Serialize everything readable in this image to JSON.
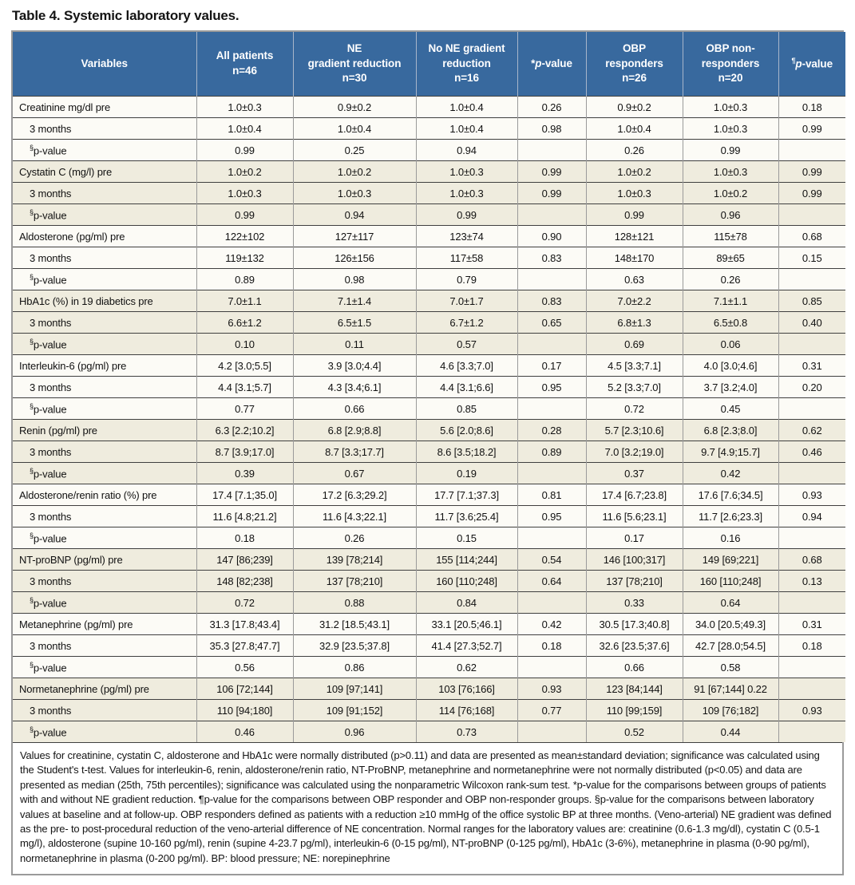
{
  "title": "Table 4. Systemic laboratory values.",
  "colors": {
    "header_bg": "#38699E",
    "header_text": "#FFFFFF",
    "band_beige": "#EFECDE",
    "band_white": "#FCFBF6",
    "grid_horizontal": "#3F3F3F",
    "grid_vertical": "#9A9A9A",
    "outer_border": "#9A9A9A"
  },
  "columns": [
    {
      "text": "Variables"
    },
    {
      "text": "All patients\nn=46"
    },
    {
      "text": "NE\ngradient reduction\nn=30"
    },
    {
      "text": "No NE gradient\nreduction\nn=16"
    },
    {
      "pre": "*",
      "italic": "p",
      "text": "-value"
    },
    {
      "text": "OBP\nresponders\nn=26"
    },
    {
      "text": "OBP non-\nresponders\nn=20"
    },
    {
      "sup": "¶",
      "italic": "p",
      "text": "-value"
    }
  ],
  "rows": [
    {
      "label": {
        "text": "Creatinine mg/dl pre"
      },
      "cells": [
        "1.0±0.3",
        "0.9±0.2",
        "1.0±0.4",
        "0.26",
        "0.9±0.2",
        "1.0±0.3",
        "0.18"
      ]
    },
    {
      "label": {
        "text": "3 months",
        "indent": true
      },
      "cells": [
        "1.0±0.4",
        "1.0±0.4",
        "1.0±0.4",
        "0.98",
        "1.0±0.4",
        "1.0±0.3",
        "0.99"
      ]
    },
    {
      "label": {
        "sup": "§",
        "text": "p-value",
        "indent": true
      },
      "cells": [
        "0.99",
        "0.25",
        "0.94",
        "",
        "0.26",
        "0.99",
        ""
      ]
    },
    {
      "label": {
        "text": "Cystatin C (mg/l) pre"
      },
      "cells": [
        "1.0±0.2",
        "1.0±0.2",
        "1.0±0.3",
        "0.99",
        "1.0±0.2",
        "1.0±0.3",
        "0.99"
      ]
    },
    {
      "label": {
        "text": "3 months",
        "indent": true
      },
      "cells": [
        "1.0±0.3",
        "1.0±0.3",
        "1.0±0.3",
        "0.99",
        "1.0±0.3",
        "1.0±0.2",
        "0.99"
      ]
    },
    {
      "label": {
        "sup": "§",
        "text": "p-value",
        "indent": true
      },
      "cells": [
        "0.99",
        "0.94",
        "0.99",
        "",
        "0.99",
        "0.96",
        ""
      ]
    },
    {
      "label": {
        "text": "Aldosterone (pg/ml) pre"
      },
      "cells": [
        "122±102",
        "127±117",
        "123±74",
        "0.90",
        "128±121",
        "115±78",
        "0.68"
      ]
    },
    {
      "label": {
        "text": "3 months",
        "indent": true
      },
      "cells": [
        "119±132",
        "126±156",
        "117±58",
        "0.83",
        "148±170",
        "89±65",
        "0.15"
      ]
    },
    {
      "label": {
        "sup": "§",
        "text": "p-value",
        "indent": true
      },
      "cells": [
        "0.89",
        "0.98",
        "0.79",
        "",
        "0.63",
        "0.26",
        ""
      ]
    },
    {
      "label": {
        "text": "HbA1c (%) in 19 diabetics pre"
      },
      "cells": [
        "7.0±1.1",
        "7.1±1.4",
        "7.0±1.7",
        "0.83",
        "7.0±2.2",
        "7.1±1.1",
        "0.85"
      ]
    },
    {
      "label": {
        "text": "3 months",
        "indent": true
      },
      "cells": [
        "6.6±1.2",
        "6.5±1.5",
        "6.7±1.2",
        "0.65",
        "6.8±1.3",
        "6.5±0.8",
        "0.40"
      ]
    },
    {
      "label": {
        "sup": "§",
        "text": "p-value",
        "indent": true
      },
      "cells": [
        "0.10",
        "0.11",
        "0.57",
        "",
        "0.69",
        "0.06",
        ""
      ]
    },
    {
      "label": {
        "text": "Interleukin-6 (pg/ml) pre"
      },
      "cells": [
        "4.2 [3.0;5.5]",
        "3.9 [3.0;4.4]",
        "4.6 [3.3;7.0]",
        "0.17",
        "4.5 [3.3;7.1]",
        "4.0 [3.0;4.6]",
        "0.31"
      ]
    },
    {
      "label": {
        "text": "3 months",
        "indent": true
      },
      "cells": [
        "4.4 [3.1;5.7]",
        "4.3 [3.4;6.1]",
        "4.4 [3.1;6.6]",
        "0.95",
        "5.2 [3.3;7.0]",
        "3.7 [3.2;4.0]",
        "0.20"
      ]
    },
    {
      "label": {
        "sup": "§",
        "text": "p-value",
        "indent": true
      },
      "cells": [
        "0.77",
        "0.66",
        "0.85",
        "",
        "0.72",
        "0.45",
        ""
      ]
    },
    {
      "label": {
        "text": "Renin (pg/ml) pre"
      },
      "cells": [
        "6.3 [2.2;10.2]",
        "6.8 [2.9;8.8]",
        "5.6 [2.0;8.6]",
        "0.28",
        "5.7 [2.3;10.6]",
        "6.8 [2.3;8.0]",
        "0.62"
      ]
    },
    {
      "label": {
        "text": "3 months",
        "indent": true
      },
      "cells": [
        "8.7 [3.9;17.0]",
        "8.7 [3.3;17.7]",
        "8.6 [3.5;18.2]",
        "0.89",
        "7.0 [3.2;19.0]",
        "9.7 [4.9;15.7]",
        "0.46"
      ]
    },
    {
      "label": {
        "sup": "§",
        "text": "p-value",
        "indent": true
      },
      "cells": [
        "0.39",
        "0.67",
        "0.19",
        "",
        "0.37",
        "0.42",
        ""
      ]
    },
    {
      "label": {
        "text": "Aldosterone/renin ratio (%) pre"
      },
      "cells": [
        "17.4 [7.1;35.0]",
        "17.2 [6.3;29.2]",
        "17.7 [7.1;37.3]",
        "0.81",
        "17.4 [6.7;23.8]",
        "17.6 [7.6;34.5]",
        "0.93"
      ]
    },
    {
      "label": {
        "text": "3 months",
        "indent": true
      },
      "cells": [
        "11.6 [4.8;21.2]",
        "11.6 [4.3;22.1]",
        "11.7 [3.6;25.4]",
        "0.95",
        "11.6 [5.6;23.1]",
        "11.7 [2.6;23.3]",
        "0.94"
      ]
    },
    {
      "label": {
        "sup": "§",
        "text": "p-value",
        "indent": true
      },
      "cells": [
        "0.18",
        "0.26",
        "0.15",
        "",
        "0.17",
        "0.16",
        ""
      ]
    },
    {
      "label": {
        "text": "NT-proBNP (pg/ml) pre"
      },
      "cells": [
        "147 [86;239]",
        "139 [78;214]",
        "155 [114;244]",
        "0.54",
        "146 [100;317]",
        "149 [69;221]",
        "0.68"
      ]
    },
    {
      "label": {
        "text": "3 months",
        "indent": true
      },
      "cells": [
        "148 [82;238]",
        "137 [78;210]",
        "160 [110;248]",
        "0.64",
        "137 [78;210]",
        "160 [110;248]",
        "0.13"
      ]
    },
    {
      "label": {
        "sup": "§",
        "text": "p-value",
        "indent": true
      },
      "cells": [
        "0.72",
        "0.88",
        "0.84",
        "",
        "0.33",
        "0.64",
        ""
      ]
    },
    {
      "label": {
        "text": "Metanephrine (pg/ml) pre"
      },
      "cells": [
        "31.3 [17.8;43.4]",
        "31.2 [18.5;43.1]",
        "33.1 [20.5;46.1]",
        "0.42",
        "30.5 [17.3;40.8]",
        "34.0 [20.5;49.3]",
        "0.31"
      ]
    },
    {
      "label": {
        "text": "3 months",
        "indent": true
      },
      "cells": [
        "35.3 [27.8;47.7]",
        "32.9 [23.5;37.8]",
        "41.4 [27.3;52.7]",
        "0.18",
        "32.6 [23.5;37.6]",
        "42.7 [28.0;54.5]",
        "0.18"
      ]
    },
    {
      "label": {
        "sup": "§",
        "text": "p-value",
        "indent": true
      },
      "cells": [
        "0.56",
        "0.86",
        "0.62",
        "",
        "0.66",
        "0.58",
        ""
      ]
    },
    {
      "label": {
        "text": "Normetanephrine (pg/ml) pre"
      },
      "cells": [
        "106 [72;144]",
        "109 [97;141]",
        "103 [76;166]",
        "0.93",
        "123 [84;144]",
        "91 [67;144] 0.22",
        ""
      ]
    },
    {
      "label": {
        "text": "3 months",
        "indent": true
      },
      "cells": [
        "110 [94;180]",
        "109 [91;152]",
        "114 [76;168]",
        "0.77",
        "110 [99;159]",
        "109 [76;182]",
        "0.93"
      ]
    },
    {
      "label": {
        "sup": "§",
        "text": "p-value",
        "indent": true
      },
      "cells": [
        "0.46",
        "0.96",
        "0.73",
        "",
        "0.52",
        "0.44",
        ""
      ]
    }
  ],
  "footnote": "Values for creatinine, cystatin C, aldosterone and HbA1c were normally distributed (p>0.11) and data are presented as mean±standard deviation; significance was calculated using the Student's t-test. Values for interleukin-6, renin, aldosterone/renin ratio, NT-ProBNP, metanephrine and normetanephrine were not normally distributed (p<0.05) and data are presented as median (25th, 75th percentiles); significance was calculated using the nonparametric Wilcoxon rank-sum test. *p-value for the comparisons between groups of patients with and without NE gradient reduction. ¶p-value for the comparisons between OBP responder and OBP non-responder groups. §p-value for the comparisons between laboratory values at baseline and at follow-up. OBP responders defined as patients with a reduction ≥10 mmHg of the office systolic BP at three months. (Veno-arterial) NE gradient was defined as the pre- to post-procedural reduction of the veno-arterial difference of NE concentration. Normal ranges for the laboratory values are: creatinine (0.6-1.3 mg/dl), cystatin C (0.5-1 mg/l), aldosterone (supine 10-160 pg/ml), renin (supine 4-23.7 pg/ml), interleukin-6 (0-15 pg/ml), NT-proBNP (0-125 pg/ml), HbA1c (3-6%), metanephrine in plasma (0-90 pg/ml), normetanephrine in plasma (0-200 pg/ml). BP: blood pressure; NE: norepinephrine"
}
